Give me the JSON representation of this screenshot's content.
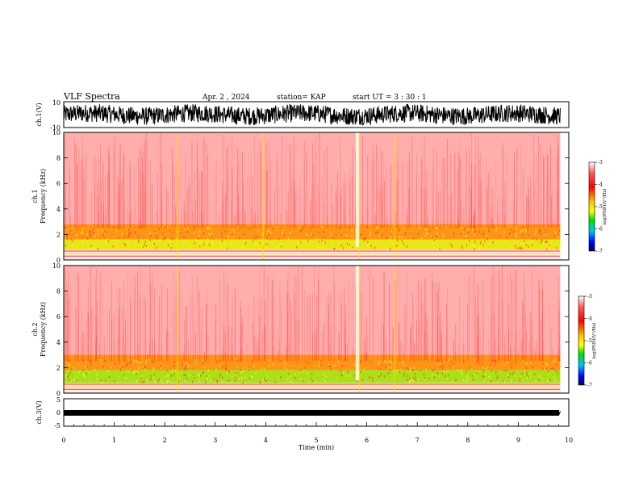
{
  "header": {
    "title": "VLF Spectra",
    "date": "Apr. 2 , 2024",
    "station": "station= KAP",
    "start": "start UT =  3 : 30 : 1"
  },
  "colors": {
    "spectrogram_main": "#ff2a2a",
    "spectrogram_band": "#e8e81a",
    "spectrogram_green": "#40e040",
    "waveform": "#000000"
  },
  "colorbar": {
    "label": "log(PSD)(V²/Hz)",
    "ticks": [
      "-3",
      "-4",
      "-5",
      "-6",
      "-7"
    ],
    "stops": [
      "#ffffff",
      "#ff0000",
      "#ffa500",
      "#ffff00",
      "#00ff00",
      "#00bfff",
      "#0000ff",
      "#000080"
    ]
  },
  "chart_data": [
    {
      "type": "line",
      "panel": "ch1-waveform",
      "ylabel": "ch.1(V)",
      "ylim": [
        -10,
        10
      ],
      "ytick_labels": [
        "10",
        "-10"
      ],
      "xlim": [
        0,
        10
      ],
      "description_values": {
        "approx_amplitude_range": [
          -6,
          8
        ]
      }
    },
    {
      "type": "heatmap",
      "panel": "ch1-spectrogram",
      "ylabel_line1": "ch.1",
      "ylabel_line2": "Frequency (kHz)",
      "ylim": [
        0,
        10
      ],
      "ytick_labels": [
        "0",
        "2",
        "4",
        "6",
        "8",
        "10"
      ],
      "xlim": [
        0,
        9.83
      ],
      "color_scale": "log(PSD)(V²/Hz)",
      "clim": [
        -7,
        -3
      ],
      "bands": [
        {
          "f_low": 0.8,
          "f_high": 1.6,
          "level": -4.6
        },
        {
          "f_low": 1.6,
          "f_high": 2.8,
          "level": -4.2
        },
        {
          "f_low": 2.8,
          "f_high": 10,
          "level": -3.6
        }
      ],
      "bright_times_min": [
        2.25,
        3.95,
        5.85,
        6.55
      ]
    },
    {
      "type": "heatmap",
      "panel": "ch2-spectrogram",
      "ylabel_line1": "ch.2",
      "ylabel_line2": "Frequency (kHz)",
      "ylim": [
        0,
        10
      ],
      "ytick_labels": [
        "0",
        "2",
        "4",
        "6",
        "8",
        "10"
      ],
      "xlim": [
        0,
        9.83
      ],
      "color_scale": "log(PSD)(V²/Hz)",
      "clim": [
        -7,
        -3
      ],
      "bands": [
        {
          "f_low": 0.8,
          "f_high": 1.8,
          "level": -5.0
        },
        {
          "f_low": 1.8,
          "f_high": 3.0,
          "level": -4.3
        },
        {
          "f_low": 3.0,
          "f_high": 10,
          "level": -3.6
        }
      ],
      "bright_times_min": [
        2.25,
        5.85,
        6.55
      ]
    },
    {
      "type": "line",
      "panel": "ch3-waveform",
      "ylabel": "ch.3(V)",
      "ylim": [
        -5,
        5
      ],
      "ytick_labels": [
        "5",
        "0",
        "-5"
      ],
      "xlim": [
        0,
        10
      ],
      "xlabel": "Time (min)",
      "xtick_labels": [
        "0",
        "1",
        "2",
        "3",
        "4",
        "5",
        "6",
        "7",
        "8",
        "9",
        "10"
      ],
      "description_values": {
        "approx_level": 0,
        "approx_amplitude": 0.6
      }
    }
  ]
}
